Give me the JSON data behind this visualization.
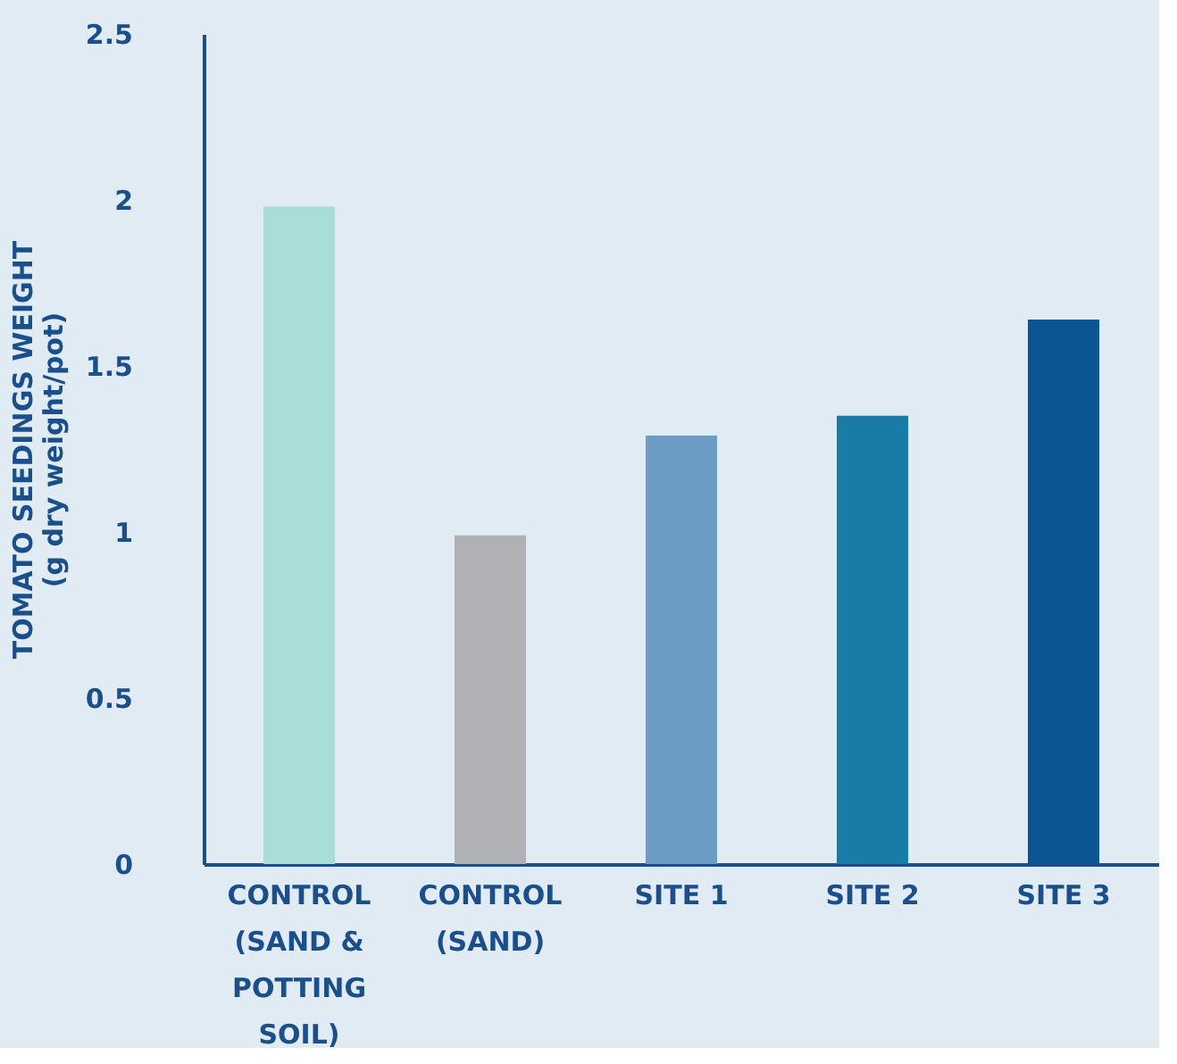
{
  "chart_data": {
    "type": "bar",
    "ylabel": "TOMATO SEEDINGS WEIGHT\n(g dry weight/pot)",
    "categories": [
      "CONTROL (SAND & POTTING SOIL)",
      "CONTROL (SAND)",
      "SITE 1",
      "SITE 2",
      "SITE 3"
    ],
    "values": [
      1.98,
      0.99,
      1.29,
      1.35,
      1.64
    ],
    "colors": [
      "#a8ddd9",
      "#b0b1b5",
      "#6c9bc4",
      "#197ca6",
      "#0b5592"
    ],
    "ylim": [
      0,
      2.5
    ],
    "yticks": [
      0,
      0.5,
      1,
      1.5,
      2,
      2.5
    ],
    "grid": false
  }
}
